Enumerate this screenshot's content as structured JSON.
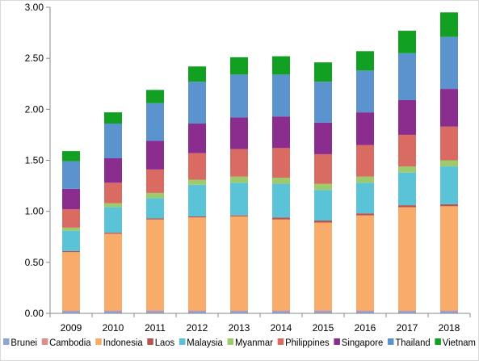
{
  "chart_data": {
    "type": "bar",
    "stacked": true,
    "title": "",
    "xlabel": "",
    "ylabel": "",
    "ylim": [
      0,
      3.0
    ],
    "y_ticks": [
      "0.00",
      "0.50",
      "1.00",
      "1.50",
      "2.00",
      "2.50",
      "3.00"
    ],
    "grid": false,
    "legend_position": "bottom",
    "categories": [
      "2009",
      "2010",
      "2011",
      "2012",
      "2013",
      "2014",
      "2015",
      "2016",
      "2017",
      "2018"
    ],
    "series": [
      {
        "name": "Brunei",
        "color": "#8ea6d6",
        "values": [
          0.02,
          0.02,
          0.02,
          0.02,
          0.02,
          0.02,
          0.02,
          0.02,
          0.02,
          0.02
        ]
      },
      {
        "name": "Cambodia",
        "color": "#de8e89",
        "values": [
          0.01,
          0.01,
          0.01,
          0.01,
          0.01,
          0.01,
          0.01,
          0.01,
          0.01,
          0.01
        ]
      },
      {
        "name": "Indonesia",
        "color": "#f9ac6a",
        "values": [
          0.57,
          0.75,
          0.89,
          0.91,
          0.92,
          0.89,
          0.86,
          0.93,
          1.01,
          1.02
        ]
      },
      {
        "name": "Laos",
        "color": "#b65550",
        "values": [
          0.01,
          0.01,
          0.01,
          0.01,
          0.01,
          0.02,
          0.02,
          0.02,
          0.02,
          0.02
        ]
      },
      {
        "name": "Malaysia",
        "color": "#5bc3d8",
        "values": [
          0.2,
          0.25,
          0.2,
          0.31,
          0.32,
          0.33,
          0.3,
          0.3,
          0.32,
          0.37
        ]
      },
      {
        "name": "Myanmar",
        "color": "#9dcb6b",
        "values": [
          0.03,
          0.04,
          0.05,
          0.05,
          0.06,
          0.06,
          0.06,
          0.06,
          0.06,
          0.06
        ]
      },
      {
        "name": "Philippines",
        "color": "#d96b62",
        "values": [
          0.18,
          0.2,
          0.23,
          0.26,
          0.27,
          0.29,
          0.29,
          0.31,
          0.31,
          0.33
        ]
      },
      {
        "name": "Singapore",
        "color": "#8b2d8f",
        "values": [
          0.2,
          0.24,
          0.28,
          0.29,
          0.31,
          0.31,
          0.31,
          0.32,
          0.34,
          0.37
        ]
      },
      {
        "name": "Thailand",
        "color": "#5b93cf",
        "values": [
          0.27,
          0.34,
          0.37,
          0.41,
          0.42,
          0.41,
          0.4,
          0.41,
          0.46,
          0.51
        ]
      },
      {
        "name": "Vietnam",
        "color": "#12a022",
        "values": [
          0.1,
          0.11,
          0.13,
          0.15,
          0.17,
          0.18,
          0.19,
          0.19,
          0.22,
          0.24
        ]
      }
    ]
  }
}
